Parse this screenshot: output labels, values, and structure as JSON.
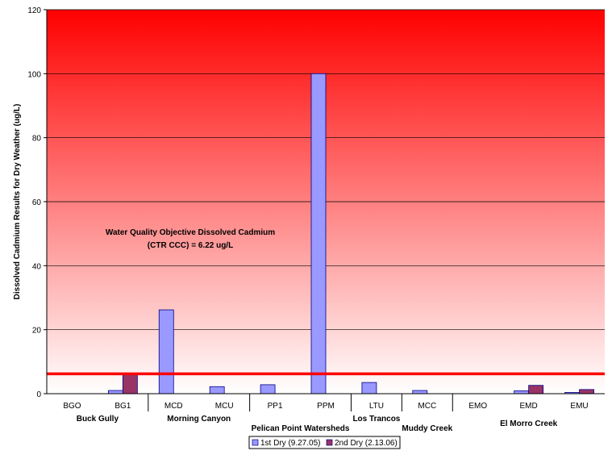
{
  "chart_data": {
    "type": "bar",
    "ylabel": "Dissolved Cadmium Results for Dry Weather (ug/L)",
    "ylim": [
      0,
      120
    ],
    "yticks": [
      0,
      20,
      40,
      60,
      80,
      100,
      120
    ],
    "categories": [
      "BGO",
      "BG1",
      "MCD",
      "MCU",
      "PP1",
      "PPM",
      "LTU",
      "MCC",
      "EMO",
      "EMD",
      "EMU"
    ],
    "series": [
      {
        "name": "1st Dry (9.27.05)",
        "color": "#9999ff",
        "values": [
          0,
          1.0,
          26.2,
          2.2,
          2.8,
          100,
          3.5,
          1.0,
          0,
          0.9,
          0.4
        ]
      },
      {
        "name": "2nd Dry (2.13.06)",
        "color": "#993366",
        "values": [
          0,
          6.0,
          0,
          0,
          0,
          0,
          0,
          0,
          0,
          2.6,
          1.3
        ]
      }
    ],
    "groups": [
      {
        "label": "Buck Gully",
        "start": 0,
        "end": 1
      },
      {
        "label": "Morning Canyon",
        "start": 2,
        "end": 3
      },
      {
        "label": "Pelican Point Watersheds",
        "start": 4,
        "end": 5
      },
      {
        "label": "Los Trancos",
        "start": 6,
        "end": 6
      },
      {
        "label": "Muddy Creek",
        "start": 7,
        "end": 7
      },
      {
        "label": "El Morro Creek",
        "start": 8,
        "end": 10
      }
    ],
    "reference_line": {
      "value": 6.22,
      "color": "#ff0000"
    },
    "annotation": {
      "line1": "Water Quality Objective Dissolved Cadmium",
      "line2": "(CTR CCC) = 6.22 ug/L"
    },
    "grid": true,
    "legend_position": "bottom-center",
    "background": {
      "top_color": "#ff0000",
      "bottom_color": "#ffffff"
    },
    "bar_outline_color": "#000080"
  }
}
